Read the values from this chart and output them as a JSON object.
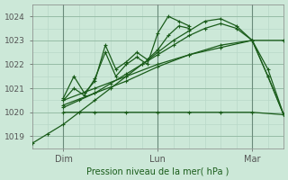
{
  "bg_color": "#cce8d8",
  "grid_color_minor": "#b8d8c8",
  "grid_color_major": "#90b8a0",
  "line_color_dark": "#1a5c1a",
  "ylabel": "Pression niveau de la mer( hPa )",
  "ylim": [
    1018.5,
    1024.5
  ],
  "yticks": [
    1019,
    1020,
    1021,
    1022,
    1023,
    1024
  ],
  "xlim": [
    0,
    48
  ],
  "xtick_positions": [
    6,
    24,
    42
  ],
  "xtick_labels": [
    "Dim",
    "Lun",
    "Mar"
  ],
  "vlines": [
    6,
    24,
    42
  ],
  "series": [
    {
      "x": [
        6,
        12,
        18,
        24,
        30,
        36,
        42,
        48
      ],
      "y": [
        1020.0,
        1020.0,
        1020.0,
        1020.0,
        1020.0,
        1020.0,
        1020.0,
        1019.9
      ]
    },
    {
      "x": [
        0,
        3,
        6,
        9,
        12,
        15,
        18,
        21,
        24,
        27,
        30,
        33,
        36,
        39,
        42,
        45,
        48
      ],
      "y": [
        1018.7,
        1019.1,
        1019.5,
        1020.0,
        1020.5,
        1021.0,
        1021.5,
        1022.0,
        1022.5,
        1023.0,
        1023.4,
        1023.8,
        1023.9,
        1023.6,
        1023.0,
        1021.5,
        1019.9
      ]
    },
    {
      "x": [
        6,
        9,
        12,
        15,
        18,
        21,
        24,
        27,
        30,
        33,
        36,
        39,
        42,
        45,
        48
      ],
      "y": [
        1020.2,
        1020.5,
        1020.8,
        1021.2,
        1021.6,
        1022.0,
        1022.4,
        1022.8,
        1023.2,
        1023.5,
        1023.7,
        1023.5,
        1023.0,
        1021.8,
        1019.9
      ]
    },
    {
      "x": [
        6,
        8,
        10,
        12,
        14,
        16,
        18,
        20,
        22,
        24,
        26,
        28,
        30
      ],
      "y": [
        1020.6,
        1021.5,
        1020.8,
        1021.3,
        1022.8,
        1021.8,
        1022.1,
        1022.5,
        1022.2,
        1022.6,
        1023.2,
        1023.6,
        1023.5
      ]
    },
    {
      "x": [
        6,
        8,
        10,
        12,
        14,
        16,
        18,
        20,
        22,
        24,
        26,
        28,
        30
      ],
      "y": [
        1020.5,
        1021.0,
        1020.7,
        1021.4,
        1022.5,
        1021.5,
        1022.0,
        1022.3,
        1022.0,
        1023.3,
        1024.0,
        1023.8,
        1023.6
      ]
    },
    {
      "x": [
        6,
        12,
        18,
        24,
        30,
        36,
        42,
        48
      ],
      "y": [
        1020.5,
        1021.0,
        1021.5,
        1022.0,
        1022.4,
        1022.7,
        1023.0,
        1023.0
      ]
    },
    {
      "x": [
        6,
        12,
        18,
        24,
        30,
        36,
        42,
        45,
        48
      ],
      "y": [
        1020.3,
        1020.8,
        1021.3,
        1021.9,
        1022.4,
        1022.8,
        1023.0,
        1021.5,
        1019.9
      ]
    }
  ]
}
